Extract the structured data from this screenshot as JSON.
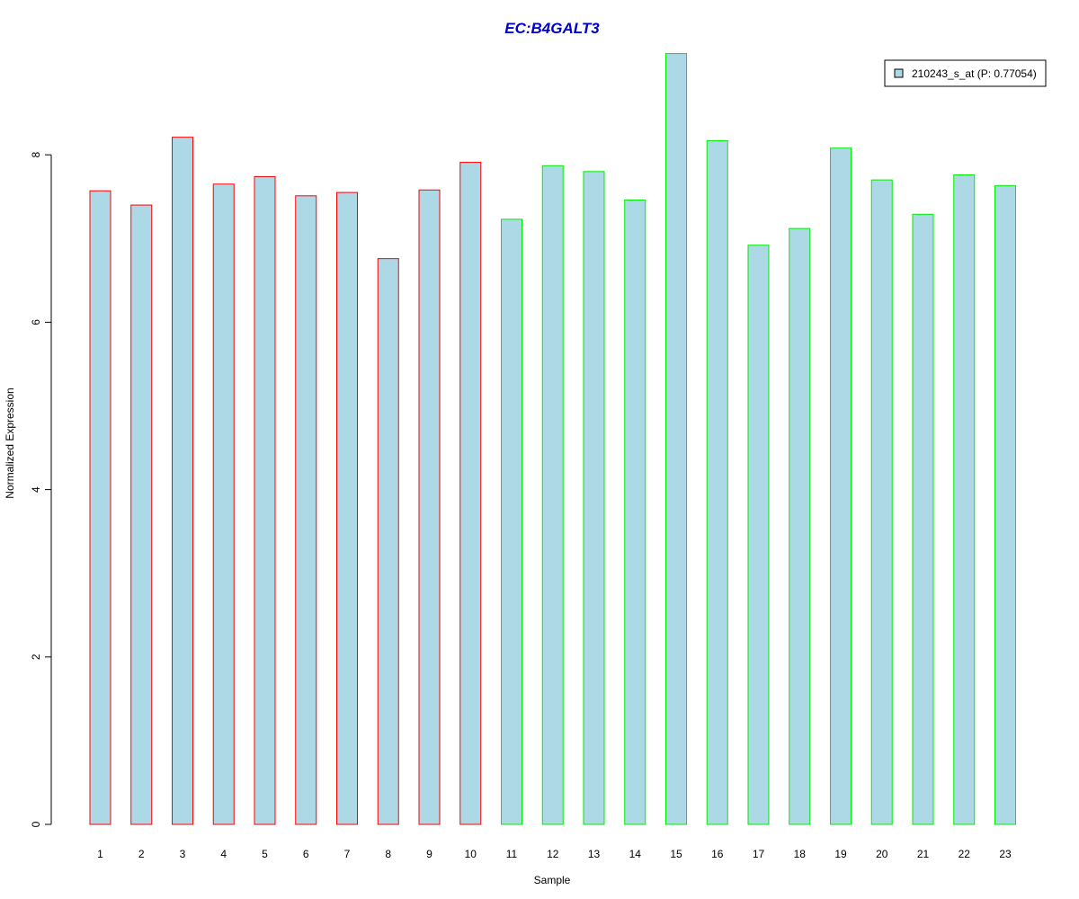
{
  "chart_data": {
    "type": "bar",
    "title": "EC:B4GALT3",
    "xlabel": "Sample",
    "ylabel": "Normalized Expression",
    "categories": [
      "1",
      "2",
      "3",
      "4",
      "5",
      "6",
      "7",
      "8",
      "9",
      "10",
      "11",
      "12",
      "13",
      "14",
      "15",
      "16",
      "17",
      "18",
      "19",
      "20",
      "21",
      "22",
      "23"
    ],
    "series": [
      {
        "name": "210243_s_at (P: 0.77054)",
        "values": [
          7.57,
          7.4,
          8.21,
          7.65,
          7.74,
          7.51,
          7.55,
          6.76,
          7.58,
          7.91,
          7.23,
          7.87,
          7.8,
          7.46,
          9.21,
          8.17,
          6.92,
          7.12,
          8.08,
          7.7,
          7.29,
          7.76,
          7.63
        ]
      }
    ],
    "bar_groups": [
      "red",
      "red",
      "red",
      "red",
      "red",
      "red",
      "red",
      "red",
      "red",
      "red",
      "green",
      "green",
      "green",
      "green",
      "green",
      "green",
      "green",
      "green",
      "green",
      "green",
      "green",
      "green",
      "green"
    ],
    "ylim": [
      0,
      9.2
    ],
    "yticks": [
      "0",
      "2",
      "4",
      "6",
      "8"
    ],
    "grid": false,
    "legend_position": "top-right",
    "colors": {
      "bar_fill": "#add8e6",
      "red": "#ff0000",
      "green": "#00ee00",
      "title": "#0000cd",
      "axis": "#000000"
    }
  }
}
